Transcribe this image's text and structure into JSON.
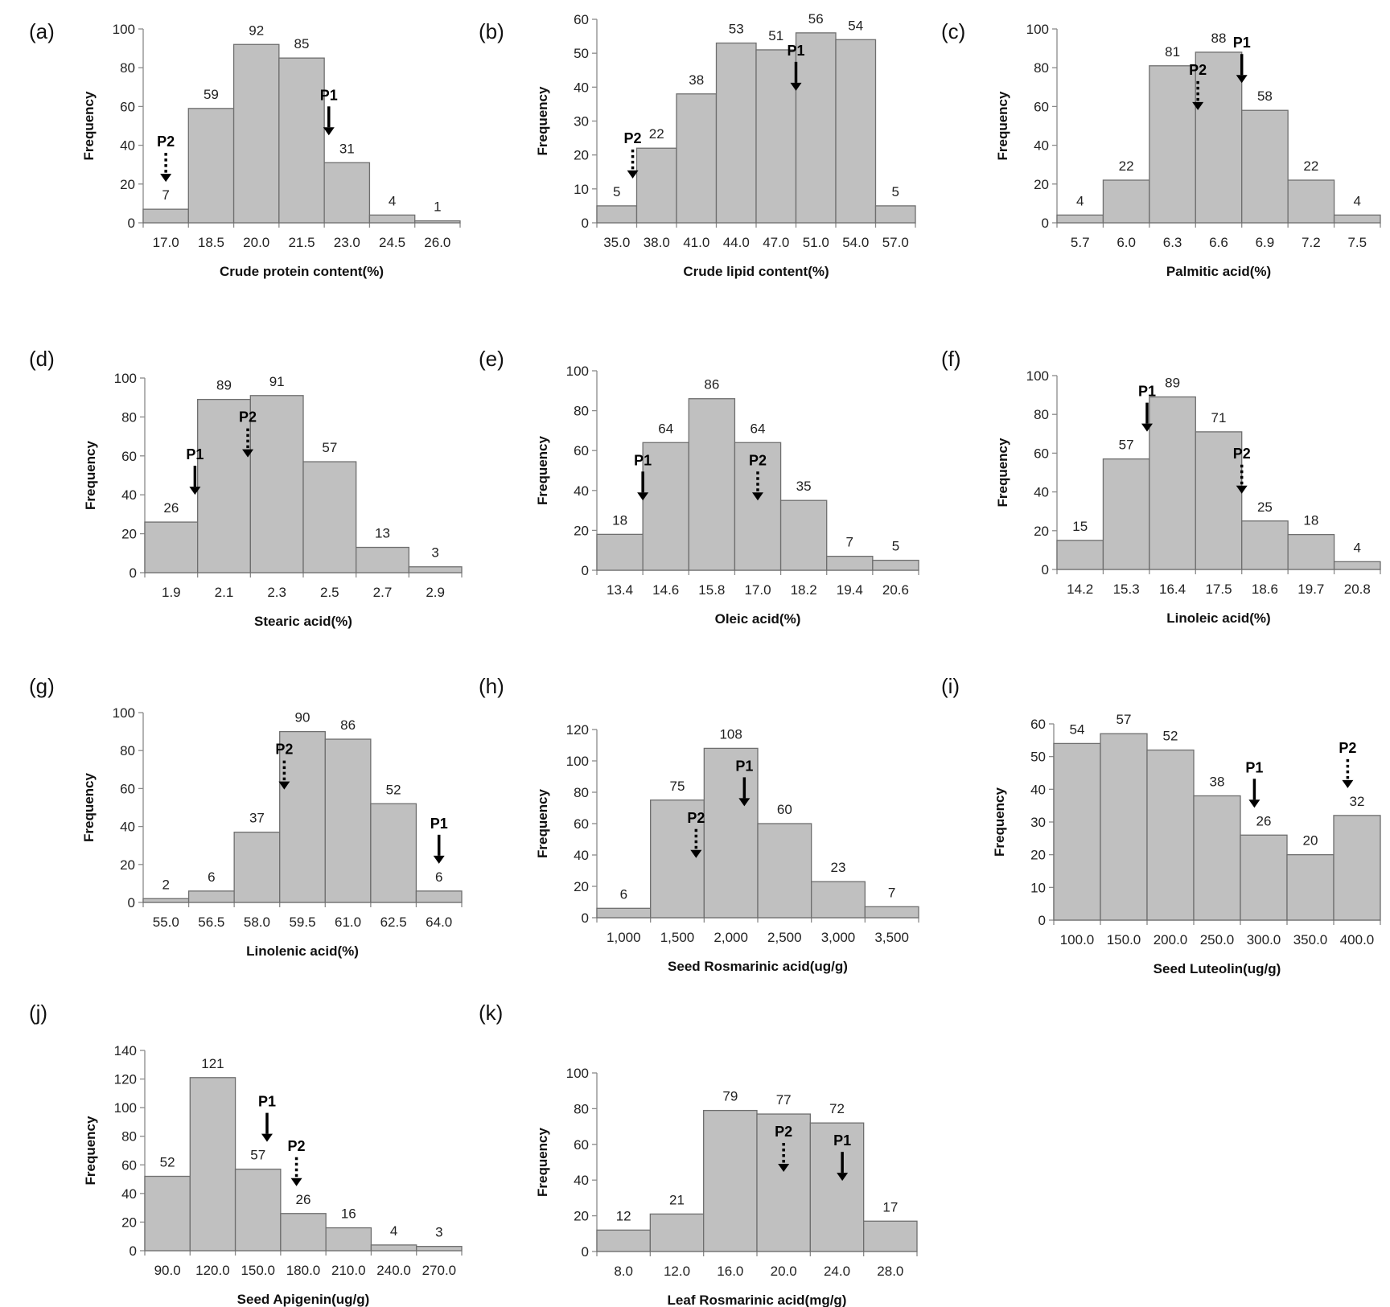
{
  "chart_data": [
    {
      "id": "a",
      "type": "bar",
      "panel_label": "(a)",
      "xlabel": "Crude protein content(%)",
      "ylabel": "Frequency",
      "categories": [
        "17.0",
        "18.5",
        "20.0",
        "21.5",
        "23.0",
        "24.5",
        "26.0"
      ],
      "values": [
        7,
        59,
        92,
        85,
        31,
        4,
        1
      ],
      "ylim": [
        0,
        100
      ],
      "yticks": [
        0,
        20,
        40,
        60,
        80,
        100
      ],
      "markers": [
        {
          "label": "P2",
          "style": "dashed",
          "bin": 0
        },
        {
          "label": "P1",
          "style": "solid",
          "bin": 3.6
        }
      ]
    },
    {
      "id": "b",
      "type": "bar",
      "panel_label": "(b)",
      "xlabel": "Crude lipid content(%)",
      "ylabel": "Frequency",
      "categories": [
        "35.0",
        "38.0",
        "41.0",
        "44.0",
        "47.0",
        "51.0",
        "54.0",
        "57.0"
      ],
      "values": [
        5,
        22,
        38,
        53,
        51,
        56,
        54,
        5
      ],
      "ylim": [
        0,
        60
      ],
      "yticks": [
        0,
        10,
        20,
        30,
        40,
        50,
        60
      ],
      "markers": [
        {
          "label": "P2",
          "style": "dashed",
          "bin": 0.4
        },
        {
          "label": "P1",
          "style": "solid",
          "bin": 4.5
        }
      ]
    },
    {
      "id": "c",
      "type": "bar",
      "panel_label": "(c)",
      "xlabel": "Palmitic acid(%)",
      "ylabel": "Frequency",
      "categories": [
        "5.7",
        "6.0",
        "6.3",
        "6.6",
        "6.9",
        "7.2",
        "7.5"
      ],
      "values": [
        4,
        22,
        81,
        88,
        58,
        22,
        4
      ],
      "ylim": [
        0,
        100
      ],
      "yticks": [
        0,
        20,
        40,
        60,
        80,
        100
      ],
      "markers": [
        {
          "label": "P2",
          "style": "dashed",
          "bin": 2.55
        },
        {
          "label": "P1",
          "style": "solid",
          "bin": 3.5
        }
      ]
    },
    {
      "id": "d",
      "type": "bar",
      "panel_label": "(d)",
      "xlabel": "Stearic acid(%)",
      "ylabel": "Frequency",
      "categories": [
        "1.9",
        "2.1",
        "2.3",
        "2.5",
        "2.7",
        "2.9"
      ],
      "values": [
        26,
        89,
        91,
        57,
        13,
        3
      ],
      "ylim": [
        0,
        100
      ],
      "yticks": [
        0,
        20,
        40,
        60,
        80,
        100
      ],
      "markers": [
        {
          "label": "P1",
          "style": "solid",
          "bin": 0.45
        },
        {
          "label": "P2",
          "style": "dashed",
          "bin": 1.45
        }
      ]
    },
    {
      "id": "e",
      "type": "bar",
      "panel_label": "(e)",
      "xlabel": "Oleic acid(%)",
      "ylabel": "Frequency",
      "categories": [
        "13.4",
        "14.6",
        "15.8",
        "17.0",
        "18.2",
        "19.4",
        "20.6"
      ],
      "values": [
        18,
        64,
        86,
        64,
        35,
        7,
        5
      ],
      "ylim": [
        0,
        100
      ],
      "yticks": [
        0,
        20,
        40,
        60,
        80,
        100
      ],
      "markers": [
        {
          "label": "P1",
          "style": "solid",
          "bin": 0.5
        },
        {
          "label": "P2",
          "style": "dashed",
          "bin": 3.0
        }
      ]
    },
    {
      "id": "f",
      "type": "bar",
      "panel_label": "(f)",
      "xlabel": "Linoleic acid(%)",
      "ylabel": "Frequency",
      "categories": [
        "14.2",
        "15.3",
        "16.4",
        "17.5",
        "18.6",
        "19.7",
        "20.8"
      ],
      "values": [
        15,
        57,
        89,
        71,
        25,
        18,
        4
      ],
      "ylim": [
        0,
        100
      ],
      "yticks": [
        0,
        20,
        40,
        60,
        80,
        100
      ],
      "markers": [
        {
          "label": "P1",
          "style": "solid",
          "bin": 1.45
        },
        {
          "label": "P2",
          "style": "dashed",
          "bin": 3.5
        }
      ]
    },
    {
      "id": "g",
      "type": "bar",
      "panel_label": "(g)",
      "xlabel": "Linolenic acid(%)",
      "ylabel": "Frequency",
      "categories": [
        "55.0",
        "56.5",
        "58.0",
        "59.5",
        "61.0",
        "62.5",
        "64.0"
      ],
      "values": [
        2,
        6,
        37,
        90,
        86,
        52,
        6
      ],
      "ylim": [
        0,
        100
      ],
      "yticks": [
        0,
        20,
        40,
        60,
        80,
        100
      ],
      "markers": [
        {
          "label": "P2",
          "style": "dashed",
          "bin": 2.6
        },
        {
          "label": "P1",
          "style": "solid",
          "bin": 6.0
        }
      ]
    },
    {
      "id": "h",
      "type": "bar",
      "panel_label": "(h)",
      "xlabel": "Seed Rosmarinic acid(ug/g)",
      "ylabel": "Frequency",
      "categories": [
        "1,000",
        "1,500",
        "2,000",
        "2,500",
        "3,000",
        "3,500"
      ],
      "values": [
        6,
        75,
        108,
        60,
        23,
        7
      ],
      "ylim": [
        0,
        120
      ],
      "yticks": [
        0,
        20,
        40,
        60,
        80,
        100,
        120
      ],
      "markers": [
        {
          "label": "P2",
          "style": "dashed",
          "bin": 1.35
        },
        {
          "label": "P1",
          "style": "solid",
          "bin": 2.25
        }
      ]
    },
    {
      "id": "i",
      "type": "bar",
      "panel_label": "(i)",
      "xlabel": "Seed Luteolin(ug/g)",
      "ylabel": "Frequency",
      "categories": [
        "100.0",
        "150.0",
        "200.0",
        "250.0",
        "300.0",
        "350.0",
        "400.0"
      ],
      "values": [
        54,
        57,
        52,
        38,
        26,
        20,
        32
      ],
      "ylim": [
        0,
        60
      ],
      "yticks": [
        0,
        10,
        20,
        30,
        40,
        50,
        60
      ],
      "markers": [
        {
          "label": "P1",
          "style": "solid",
          "bin": 3.8
        },
        {
          "label": "P2",
          "style": "dashed",
          "bin": 5.8
        }
      ]
    },
    {
      "id": "j",
      "type": "bar",
      "panel_label": "(j)",
      "xlabel": "Seed Apigenin(ug/g)",
      "ylabel": "Frequency",
      "categories": [
        "90.0",
        "120.0",
        "150.0",
        "180.0",
        "210.0",
        "240.0",
        "270.0"
      ],
      "values": [
        52,
        121,
        57,
        26,
        16,
        4,
        3
      ],
      "ylim": [
        0,
        140
      ],
      "yticks": [
        0,
        20,
        40,
        60,
        80,
        100,
        120,
        140
      ],
      "markers": [
        {
          "label": "P1",
          "style": "solid",
          "bin": 2.2
        },
        {
          "label": "P2",
          "style": "dashed",
          "bin": 2.85
        }
      ]
    },
    {
      "id": "k",
      "type": "bar",
      "panel_label": "(k)",
      "xlabel": "Leaf Rosmarinic acid(mg/g)",
      "ylabel": "Frequency",
      "categories": [
        "8.0",
        "12.0",
        "16.0",
        "20.0",
        "24.0",
        "28.0"
      ],
      "values": [
        12,
        21,
        79,
        77,
        72,
        17
      ],
      "ylim": [
        0,
        100
      ],
      "yticks": [
        0,
        20,
        40,
        60,
        80,
        100
      ],
      "markers": [
        {
          "label": "P2",
          "style": "dashed",
          "bin": 3.0
        },
        {
          "label": "P1",
          "style": "solid",
          "bin": 4.1
        }
      ]
    }
  ]
}
